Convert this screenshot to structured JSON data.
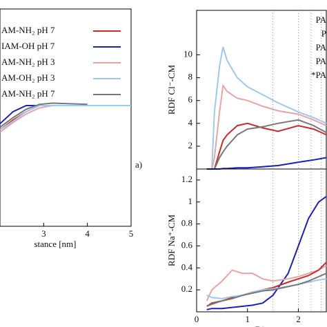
{
  "chart_data": [
    {
      "type": "line",
      "panel_label": "a)",
      "x_label": "stance [nm]",
      "xlim": [
        2,
        5
      ],
      "xticks": [
        3,
        4,
        5
      ],
      "ylim": [
        0,
        1.8
      ],
      "x": [
        2.0,
        2.3,
        2.6,
        2.9,
        3.2,
        4.0,
        5.0
      ],
      "series": [
        {
          "name": "AM-NH₂ pH 7",
          "color": "#cc2a2a",
          "values": [
            0.8,
            0.88,
            0.95,
            1.0,
            1.0,
            1.0,
            1.0
          ]
        },
        {
          "name": "IAM-OH pH 7",
          "color": "#1a1fbf",
          "values": [
            0.85,
            0.95,
            1.0,
            1.0,
            1.0,
            1.0,
            1.0
          ]
        },
        {
          "name": "AM-NH₂ pH 3",
          "color": "#eaa3a3",
          "values": [
            0.78,
            0.86,
            0.93,
            0.98,
            1.0,
            1.0,
            1.0
          ]
        },
        {
          "name": "AM-OH₂ pH 3",
          "color": "#9dc9ee",
          "values": [
            0.8,
            0.87,
            0.95,
            1.0,
            1.0,
            1.0,
            1.0
          ]
        },
        {
          "name": "AM-NH₂ pH 7",
          "color": "#777777",
          "values": [
            0.82,
            0.9,
            0.97,
            1.01,
            1.02,
            1.01,
            null
          ]
        }
      ]
    },
    {
      "type": "line",
      "y_label": "RDF Cl⁻-CM",
      "legend_texts": [
        "PA",
        "P",
        "PA",
        "PA",
        "*PA"
      ],
      "xlim": [
        0,
        2.55
      ],
      "ylim": [
        0,
        13.9
      ],
      "yticks": [
        2,
        4,
        6,
        8,
        10
      ],
      "vlines": [
        1.5,
        2.0,
        2.25,
        2.45
      ],
      "x": [
        0.2,
        0.3,
        0.35,
        0.45,
        0.52,
        0.6,
        0.8,
        1.0,
        1.3,
        1.6,
        2.0,
        2.3,
        2.55
      ],
      "series": [
        {
          "color": "#9dc9ee",
          "values": [
            0,
            0,
            5,
            9,
            10.7,
            9.5,
            8,
            7.2,
            6.5,
            5.8,
            5.0,
            4.5,
            4.0
          ]
        },
        {
          "color": "#eaa3a3",
          "values": [
            0,
            0,
            1,
            5,
            7.3,
            6.8,
            6.2,
            6,
            5.5,
            5.1,
            4.8,
            4.3,
            3.8
          ]
        },
        {
          "color": "#cc2a2a",
          "values": [
            0,
            0,
            0,
            1.5,
            2.5,
            3.0,
            3.8,
            4.0,
            3.6,
            3.3,
            3.8,
            3.5,
            3.0
          ]
        },
        {
          "color": "#777777",
          "values": [
            0,
            0,
            0,
            1,
            1.5,
            2,
            3,
            3.5,
            3.7,
            4,
            4.3,
            3.8,
            3.2
          ]
        },
        {
          "color": "#1a1fbf",
          "values": [
            0,
            0,
            0,
            0,
            0.05,
            0.05,
            0.1,
            0.1,
            0.2,
            0.3,
            0.6,
            0.8,
            1.0
          ]
        }
      ]
    },
    {
      "type": "line",
      "y_label": "RDF Na⁺-CM",
      "x_label": "Distance",
      "xlim": [
        0,
        2.55
      ],
      "xticks": [
        0,
        1,
        2
      ],
      "ylim": [
        0,
        1.3
      ],
      "yticks": [
        0.2,
        0.4,
        0.6,
        0.8,
        1.0,
        1.2
      ],
      "vlines": [
        1.5,
        2.0,
        2.25,
        2.45
      ],
      "x": [
        0.2,
        0.3,
        0.5,
        0.7,
        0.9,
        1.1,
        1.3,
        1.5,
        1.8,
        2.0,
        2.2,
        2.4,
        2.55
      ],
      "series": [
        {
          "color": "#1a1fbf",
          "values": [
            0.02,
            0.03,
            0.03,
            0.04,
            0.05,
            0.06,
            0.08,
            0.15,
            0.35,
            0.6,
            0.85,
            1.0,
            1.05
          ]
        },
        {
          "color": "#eaa3a3",
          "values": [
            0.1,
            0.2,
            0.28,
            0.38,
            0.35,
            0.35,
            0.3,
            0.28,
            0.3,
            0.32,
            0.35,
            0.38,
            0.42
          ]
        },
        {
          "color": "#cc2a2a",
          "values": [
            0.05,
            0.08,
            0.1,
            0.13,
            0.15,
            0.18,
            0.2,
            0.22,
            0.27,
            0.3,
            0.33,
            0.38,
            0.45
          ]
        },
        {
          "color": "#9dc9ee",
          "values": [
            0.15,
            0.13,
            0.12,
            0.14,
            0.15,
            0.18,
            0.2,
            0.21,
            0.23,
            0.25,
            0.27,
            0.29,
            0.3
          ]
        },
        {
          "color": "#777777",
          "values": [
            0.05,
            0.07,
            0.1,
            0.12,
            0.15,
            0.17,
            0.19,
            0.2,
            0.23,
            0.25,
            0.28,
            0.32,
            0.35
          ]
        }
      ]
    }
  ]
}
